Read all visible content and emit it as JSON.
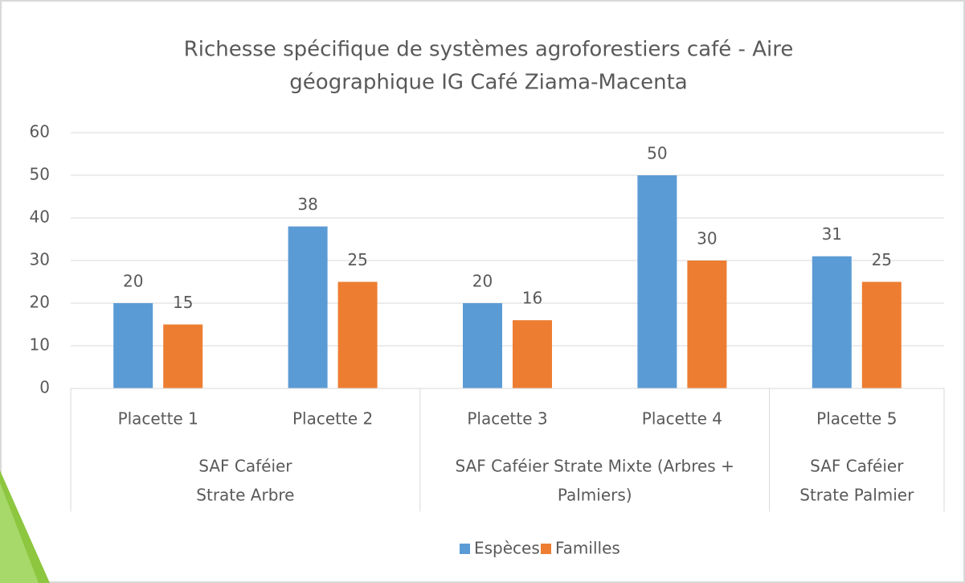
{
  "chart_data": {
    "type": "bar",
    "title": [
      "Richesse spécifique de systèmes agroforestiers café - Aire",
      "géographique IG Café Ziama-Macenta"
    ],
    "categories": [
      "Placette 1",
      "Placette 2",
      "Placette 3",
      "Placette 4",
      "Placette 5"
    ],
    "groups": [
      [
        "SAF Caféier",
        "Strate Arbre"
      ],
      [
        "SAF Caféier Strate Mixte (Arbres +",
        "Palmiers)"
      ],
      [
        "SAF Caféier",
        "Strate Palmier"
      ]
    ],
    "series": [
      {
        "name": "Espèces",
        "color": "#5b9bd5",
        "values": [
          20,
          38,
          20,
          50,
          31
        ]
      },
      {
        "name": "Familles",
        "color": "#ed7d31",
        "values": [
          15,
          25,
          16,
          30,
          25
        ]
      }
    ],
    "ylim": [
      0,
      60
    ],
    "yticks": [
      0,
      10,
      20,
      30,
      40,
      50,
      60
    ],
    "grid": true,
    "legend": "bottom"
  }
}
